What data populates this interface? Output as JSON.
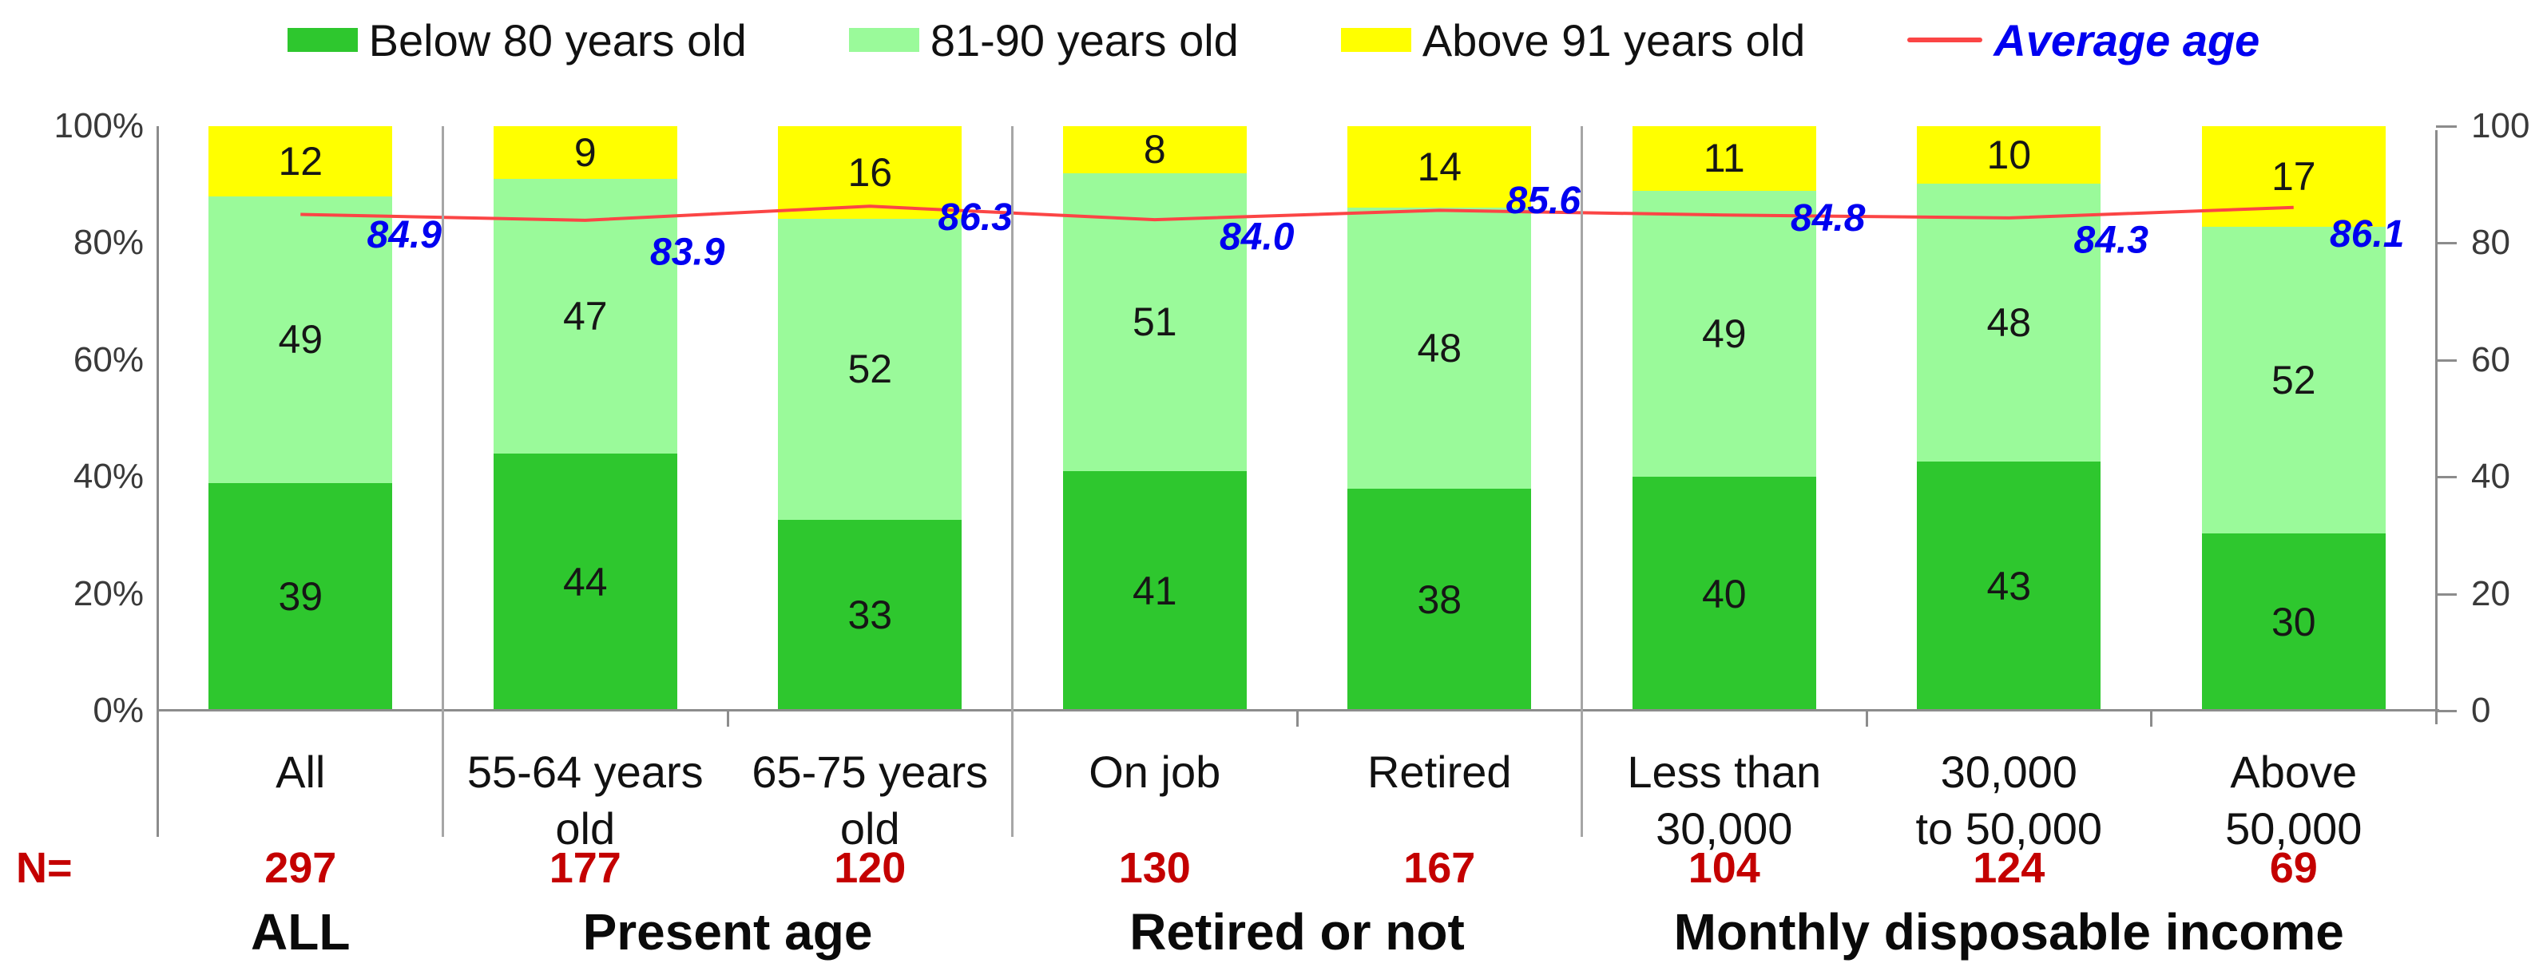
{
  "legend": {
    "items": [
      {
        "label": "Below 80 years old",
        "color": "#2ec72e"
      },
      {
        "label": "81-90 years old",
        "color": "#9afa9a"
      },
      {
        "label": "Above 91 years old",
        "color": "#ffff00"
      }
    ],
    "line_item": {
      "label": "Average age",
      "line_color": "#fb4545",
      "text_color": "#0000f0"
    }
  },
  "axes": {
    "left_ticks": [
      {
        "label": "100%",
        "value": 100
      },
      {
        "label": "80%",
        "value": 80
      },
      {
        "label": "60%",
        "value": 60
      },
      {
        "label": "40%",
        "value": 40
      },
      {
        "label": "20%",
        "value": 20
      },
      {
        "label": "0%",
        "value": 0
      }
    ],
    "right_ticks": [
      {
        "label": "100",
        "value": 100
      },
      {
        "label": "80",
        "value": 80
      },
      {
        "label": "60",
        "value": 60
      },
      {
        "label": "40",
        "value": 40
      },
      {
        "label": "20",
        "value": 20
      },
      {
        "label": "0",
        "value": 0
      }
    ]
  },
  "n_row": {
    "label": "N=",
    "color": "#c40000"
  },
  "chart_data": {
    "type": "bar",
    "subtype": "stacked-percent-with-line",
    "categories": [
      "All",
      "55-64 years old",
      "65-75 years old",
      "On job",
      "Retired",
      "Less than 30,000",
      "30,000 to 50,000",
      "Above 50,000"
    ],
    "categories_display": [
      [
        "All"
      ],
      [
        "55-64 years",
        "old"
      ],
      [
        "65-75 years",
        "old"
      ],
      [
        "On job"
      ],
      [
        "Retired"
      ],
      [
        "Less than",
        "30,000"
      ],
      [
        "30,000",
        "to 50,000"
      ],
      [
        "Above",
        "50,000"
      ]
    ],
    "series": [
      {
        "name": "Below 80 years old",
        "color": "#2ec72e",
        "values": [
          39,
          44,
          33,
          41,
          38,
          40,
          43,
          30
        ]
      },
      {
        "name": "81-90 years old",
        "color": "#9afa9a",
        "values": [
          49,
          47,
          52,
          51,
          48,
          49,
          48,
          52
        ]
      },
      {
        "name": "Above 91 years old",
        "color": "#ffff00",
        "values": [
          12,
          9,
          16,
          8,
          14,
          11,
          10,
          17
        ]
      }
    ],
    "line_series": {
      "name": "Average age",
      "color": "#fb4545",
      "values": [
        84.9,
        83.9,
        86.3,
        84.0,
        85.6,
        84.8,
        84.3,
        86.1
      ],
      "labels": [
        "84.9",
        "83.9",
        "86.3",
        "84.0",
        "85.6",
        "84.8",
        "84.3",
        "86.1"
      ],
      "label_color": "#0000f0"
    },
    "n_values": [
      "297",
      "177",
      "120",
      "130",
      "167",
      "104",
      "124",
      "69"
    ],
    "groups": [
      {
        "label": "ALL",
        "span": 1
      },
      {
        "label": "Present age",
        "span": 2
      },
      {
        "label": "Retired or not",
        "span": 2
      },
      {
        "label": "Monthly disposable income",
        "span": 3
      }
    ],
    "y_left": {
      "min": 0,
      "max": 100,
      "format": "percent"
    },
    "y_right": {
      "min": 0,
      "max": 100
    },
    "grid": false,
    "legend_position": "top"
  }
}
